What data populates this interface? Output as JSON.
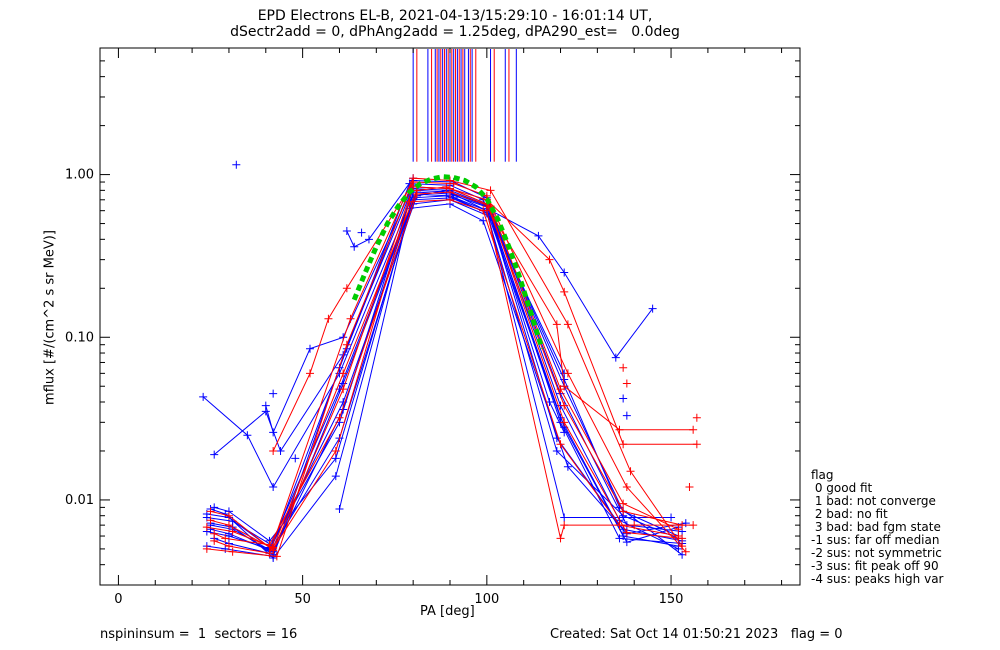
{
  "chart_data": {
    "type": "scatter",
    "title": "EPD Electrons EL-B, 2021-04-13/15:29:10 - 16:01:14 UT,",
    "subtitle": "dSectr2add = 0, dPhAng2add = 1.25deg, dPA290_est=   0.0deg",
    "xlabel": "PA [deg]",
    "ylabel": "mflux [#/(cm^2 s sr MeV)]",
    "xlim": [
      -5,
      185
    ],
    "ylim": [
      0.003,
      6.0
    ],
    "yscale": "log",
    "xticks": [
      0,
      50,
      100,
      150
    ],
    "xtick_labels": [
      "0",
      "50",
      "100",
      "150"
    ],
    "yticks": [
      0.01,
      0.1,
      1.0
    ],
    "ytick_labels": [
      "0.01",
      "0.10",
      "1.00"
    ],
    "grid": false,
    "colors": {
      "red": "#ff0000",
      "blue": "#0000ff",
      "green": "#00cc00"
    },
    "series": [
      {
        "color": "blue",
        "profiles": [
          {
            "x": [
              24,
              30,
              41,
              60,
              80,
              90,
              100,
              121,
              137,
              152
            ],
            "y": [
              0.0082,
              0.0078,
              0.0051,
              0.03,
              0.82,
              0.8,
              0.65,
              0.028,
              0.006,
              0.0052
            ]
          },
          {
            "x": [
              25,
              31,
              42,
              61,
              81,
              90,
              101,
              120,
              138,
              153
            ],
            "y": [
              0.0072,
              0.0068,
              0.0046,
              0.052,
              0.78,
              0.76,
              0.62,
              0.045,
              0.007,
              0.0064
            ]
          },
          {
            "x": [
              26,
              30,
              41,
              59,
              80,
              91,
              100,
              119,
              137,
              152
            ],
            "y": [
              0.009,
              0.0085,
              0.0056,
              0.018,
              0.7,
              0.72,
              0.58,
              0.02,
              0.008,
              0.0058
            ]
          },
          {
            "x": [
              24,
              29,
              42,
              60,
              79,
              90,
              99,
              121,
              136,
              153
            ],
            "y": [
              0.0052,
              0.005,
              0.0045,
              0.065,
              0.88,
              0.86,
              0.7,
              0.055,
              0.009,
              0.0046
            ]
          },
          {
            "x": [
              25,
              30,
              41,
              61,
              81,
              89,
              100,
              120,
              138,
              152
            ],
            "y": [
              0.0066,
              0.0062,
              0.0049,
              0.04,
              0.74,
              0.8,
              0.6,
              0.032,
              0.0055,
              0.0068
            ]
          },
          {
            "x": [
              24,
              31,
              42,
              60,
              80,
              90,
              101,
              119,
              137,
              153
            ],
            "y": [
              0.0078,
              0.0074,
              0.0052,
              0.024,
              0.66,
              0.7,
              0.55,
              0.024,
              0.0066,
              0.0056
            ]
          },
          {
            "x": [
              26,
              30,
              41,
              62,
              80,
              91,
              100,
              120,
              136,
              152
            ],
            "y": [
              0.0058,
              0.0054,
              0.0047,
              0.085,
              0.92,
              0.9,
              0.72,
              0.038,
              0.0075,
              0.005
            ]
          },
          {
            "x": [
              25,
              29,
              42,
              59,
              79,
              90,
              99,
              122,
              138,
              154
            ],
            "y": [
              0.0088,
              0.0082,
              0.0044,
              0.014,
              0.62,
              0.66,
              0.52,
              0.016,
              0.0062,
              0.0072
            ]
          },
          {
            "x": [
              24,
              30,
              41,
              60,
              81,
              90,
              100,
              121,
              137,
              152
            ],
            "y": [
              0.0064,
              0.006,
              0.005,
              0.048,
              0.8,
              0.78,
              0.64,
              0.05,
              0.0085,
              0.006
            ]
          },
          {
            "x": [
              25,
              31,
              42,
              61,
              80,
              89,
              101,
              120,
              136,
              153
            ],
            "y": [
              0.007,
              0.0066,
              0.0048,
              0.036,
              0.72,
              0.74,
              0.57,
              0.03,
              0.0058,
              0.0054
            ]
          },
          {
            "x": [
              23,
              35,
              42,
              60,
              80,
              90,
              100,
              121
            ],
            "y": [
              0.043,
              0.025,
              0.012,
              0.06,
              0.76,
              0.74,
              0.6,
              0.06
            ]
          },
          {
            "x": [
              26,
              40,
              44,
              61,
              80,
              90,
              100,
              117,
              121
            ],
            "y": [
              0.019,
              0.035,
              0.02,
              0.078,
              0.84,
              0.82,
              0.66,
              0.04,
              0.026
            ]
          },
          {
            "x": [
              40,
              42,
              52,
              61,
              80
            ],
            "y": [
              0.038,
              0.026,
              0.085,
              0.1,
              0.86
            ]
          },
          {
            "x": [
              100,
              114,
              121,
              135,
              145
            ],
            "y": [
              0.62,
              0.42,
              0.25,
              0.075,
              0.15
            ]
          },
          {
            "x": [
              100,
              121,
              140,
              150
            ],
            "y": [
              0.6,
              0.0078,
              0.0078,
              0.0078
            ]
          },
          {
            "x": [
              60,
              80
            ],
            "y": [
              0.0088,
              0.78
            ]
          },
          {
            "x": [
              62,
              64,
              68,
              80
            ],
            "y": [
              0.45,
              0.36,
              0.4,
              0.95
            ]
          }
        ],
        "outliers": [
          {
            "x": 32,
            "y": 1.15
          },
          {
            "x": 42,
            "y": 0.045
          },
          {
            "x": 48,
            "y": 0.018
          },
          {
            "x": 66,
            "y": 0.44
          },
          {
            "x": 137,
            "y": 0.042
          },
          {
            "x": 138,
            "y": 0.033
          }
        ]
      },
      {
        "color": "red",
        "profiles": [
          {
            "x": [
              25,
              30,
              42,
              61,
              80,
              90,
              100,
              121,
              138,
              153
            ],
            "y": [
              0.0085,
              0.008,
              0.0049,
              0.048,
              0.84,
              0.82,
              0.7,
              0.03,
              0.0063,
              0.0058
            ]
          },
          {
            "x": [
              26,
              29,
              41,
              60,
              81,
              90,
              101,
              120,
              137,
              152
            ],
            "y": [
              0.0062,
              0.0058,
              0.0053,
              0.032,
              0.76,
              0.78,
              0.64,
              0.048,
              0.0095,
              0.0066
            ]
          },
          {
            "x": [
              24,
              31,
              43,
              62,
              80,
              91,
              100,
              122,
              138,
              154
            ],
            "y": [
              0.005,
              0.0048,
              0.0045,
              0.09,
              0.9,
              0.88,
              0.74,
              0.06,
              0.012,
              0.0048
            ]
          },
          {
            "x": [
              25,
              30,
              42,
              59,
              79,
              90,
              99,
              120,
              136,
              152
            ],
            "y": [
              0.0075,
              0.007,
              0.005,
              0.02,
              0.68,
              0.7,
              0.6,
              0.022,
              0.007,
              0.006
            ]
          },
          {
            "x": [
              26,
              30,
              41,
              63,
              80,
              90,
              101,
              122,
              139,
              153
            ],
            "y": [
              0.0056,
              0.0052,
              0.0047,
              0.13,
              0.95,
              0.92,
              0.8,
              0.12,
              0.015,
              0.0052
            ]
          },
          {
            "x": [
              24,
              31,
              42,
              61,
              81,
              89,
              100,
              121,
              137,
              153
            ],
            "y": [
              0.0068,
              0.0064,
              0.0051,
              0.06,
              0.8,
              0.84,
              0.66,
              0.038,
              0.0085,
              0.007
            ]
          },
          {
            "x": [
              42,
              52,
              57,
              62,
              80
            ],
            "y": [
              0.02,
              0.06,
              0.13,
              0.2,
              0.9
            ]
          },
          {
            "x": [
              100,
              117,
              121,
              137,
              157
            ],
            "y": [
              0.7,
              0.3,
              0.19,
              0.022,
              0.022
            ]
          },
          {
            "x": [
              100,
              119,
              121,
              136,
              156
            ],
            "y": [
              0.64,
              0.12,
              0.05,
              0.027,
              0.027
            ]
          },
          {
            "x": [
              100,
              120,
              121,
              140,
              156
            ],
            "y": [
              0.6,
              0.0058,
              0.007,
              0.007,
              0.007
            ]
          }
        ],
        "outliers": [
          {
            "x": 138,
            "y": 0.052
          },
          {
            "x": 137,
            "y": 0.065
          },
          {
            "x": 157,
            "y": 0.032
          },
          {
            "x": 155,
            "y": 0.012
          }
        ]
      }
    ],
    "fit_curve": {
      "color": "green",
      "x": [
        64,
        67,
        70,
        73,
        76,
        79,
        82,
        85,
        88,
        91,
        94,
        97,
        100,
        103,
        106,
        109,
        112,
        115
      ],
      "y": [
        0.17,
        0.25,
        0.36,
        0.5,
        0.64,
        0.78,
        0.88,
        0.94,
        0.97,
        0.96,
        0.92,
        0.84,
        0.71,
        0.53,
        0.36,
        0.23,
        0.14,
        0.085
      ]
    },
    "spikes": {
      "blue": [
        80,
        84,
        86,
        87,
        88,
        89,
        90,
        91,
        92,
        93,
        94,
        95,
        96,
        101,
        105,
        108
      ],
      "red": [
        81,
        85,
        86.5,
        87.5,
        88.5,
        89.5,
        90.5,
        91.5,
        92.5,
        93.5,
        95.5,
        97,
        102,
        106
      ]
    }
  },
  "legend": {
    "title": "flag",
    "items": [
      " 0 good fit",
      " 1 bad: not converge",
      " 2 bad: no fit",
      " 3 bad: bad fgm state",
      "-1 sus: far off median",
      "-2 sus: not symmetric",
      "-3 sus: fit peak off 90",
      "-4 sus: peaks high var"
    ]
  },
  "footer": {
    "left": "nspininsum =  1  sectors = 16",
    "right": "Created: Sat Oct 14 01:50:21 2023   flag = 0"
  }
}
